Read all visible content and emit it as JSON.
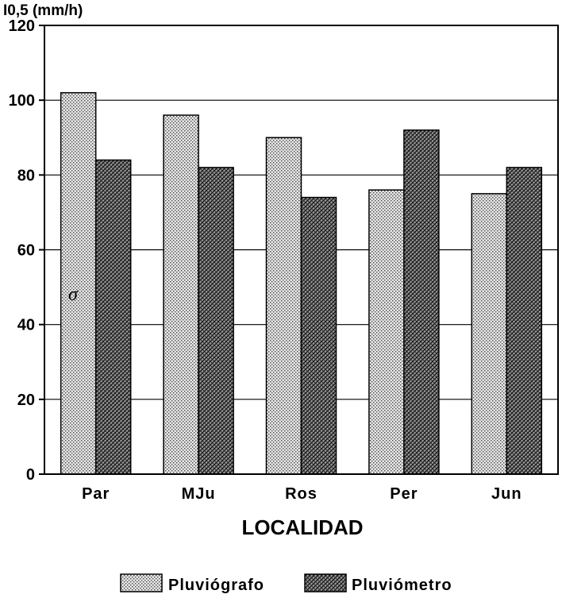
{
  "chart_data": {
    "type": "bar",
    "title": "",
    "ylabel": "I0,5 (mm/h)",
    "xlabel": "LOCALIDAD",
    "ylim": [
      0,
      120
    ],
    "yticks": [
      0,
      20,
      40,
      60,
      80,
      100,
      120
    ],
    "categories": [
      "Par",
      "MJu",
      "Ros",
      "Per",
      "Jun"
    ],
    "series": [
      {
        "name": "Pluviógrafo",
        "values": [
          102,
          96,
          90,
          76,
          75
        ],
        "pattern": "dotted-light",
        "color": "#d9d9d9"
      },
      {
        "name": "Pluviómetro",
        "values": [
          84,
          82,
          74,
          92,
          82
        ],
        "pattern": "crosshatch-dark",
        "color": "#707070"
      }
    ],
    "annotations": [
      "σ"
    ],
    "grid": true,
    "legend_position": "bottom"
  }
}
